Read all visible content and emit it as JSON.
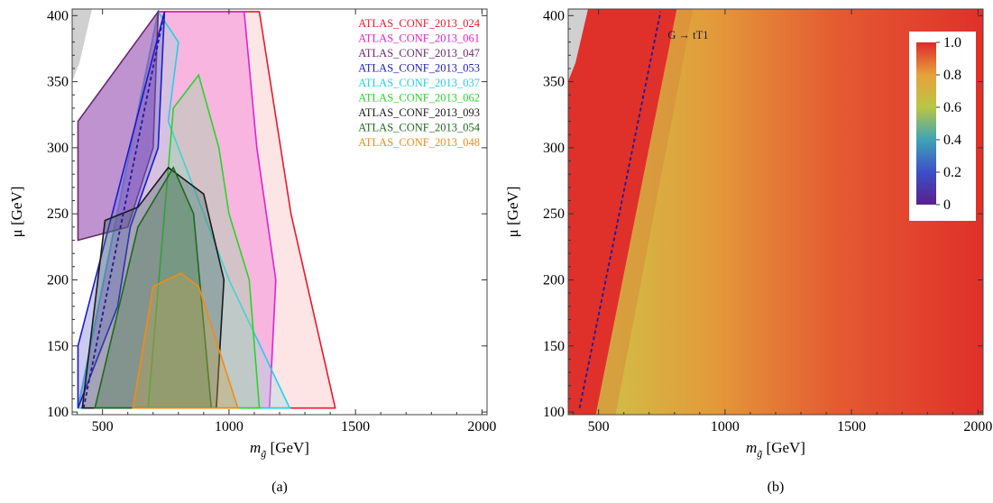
{
  "panels": [
    {
      "type": "area",
      "caption": "(a)",
      "xlabel_base": "m",
      "xlabel_sub": "g̃",
      "xlabel_unit": " [GeV]",
      "ylabel": "μ [GeV]",
      "xlim": [
        380,
        2020
      ],
      "ylim": [
        98,
        405
      ],
      "xticks": [
        "500",
        "1000",
        "1500",
        "2000"
      ],
      "yticks": [
        "100",
        "150",
        "200",
        "250",
        "300",
        "350",
        "400"
      ],
      "legend": [
        {
          "name": "ATLAS_CONF_2013_024",
          "color": "#e8192c"
        },
        {
          "name": "ATLAS_CONF_2013_061",
          "color": "#e61fd1"
        },
        {
          "name": "ATLAS_CONF_2013_047",
          "color": "#6a2a6e"
        },
        {
          "name": "ATLAS_CONF_2013_053",
          "color": "#1c1cc8"
        },
        {
          "name": "ATLAS_CONF_2013_037",
          "color": "#22d0e6"
        },
        {
          "name": "ATLAS_CONF_2013_062",
          "color": "#2ad42a"
        },
        {
          "name": "ATLAS_CONF_2013_093",
          "color": "#1a1a1a"
        },
        {
          "name": "ATLAS_CONF_2013_054",
          "color": "#1e6a1e"
        },
        {
          "name": "ATLAS_CONF_2013_048",
          "color": "#f08c14"
        }
      ]
    },
    {
      "type": "heatmap",
      "caption": "(b)",
      "xlabel_base": "m",
      "xlabel_sub": "g̃",
      "xlabel_unit": " [GeV]",
      "ylabel": "μ [GeV]",
      "xlim": [
        380,
        2020
      ],
      "ylim": [
        98,
        405
      ],
      "xticks": [
        "500",
        "1000",
        "1500",
        "2000"
      ],
      "yticks": [
        "100",
        "150",
        "200",
        "250",
        "300",
        "350",
        "400"
      ],
      "annotation": "G → tT1",
      "colorbar_ticks": [
        "1.0",
        "0.8",
        "0.6",
        "0.4",
        "0.2",
        "0"
      ]
    }
  ],
  "chart_data": [
    {
      "type": "area",
      "title": "",
      "x_unit": "GeV",
      "y_unit": "GeV",
      "xlim": [
        380,
        2020
      ],
      "ylim": [
        98,
        405
      ],
      "series": [
        {
          "name": "ATLAS_CONF_2013_024",
          "color": "#e8192c",
          "x": [
            403,
            720,
            1120,
            1245,
            1420,
            403
          ],
          "y": [
            103,
            403,
            403,
            250,
            103,
            103
          ]
        },
        {
          "name": "ATLAS_CONF_2013_061",
          "color": "#e61fd1",
          "x": [
            403,
            720,
            1060,
            1110,
            1185,
            1160,
            403
          ],
          "y": [
            103,
            403,
            403,
            300,
            200,
            103,
            103
          ]
        },
        {
          "name": "ATLAS_CONF_2013_037",
          "color": "#22d0e6",
          "x": [
            403,
            720,
            800,
            760,
            900,
            1000,
            1240,
            1165,
            403
          ],
          "y": [
            103,
            403,
            380,
            320,
            250,
            200,
            103,
            103,
            103
          ]
        },
        {
          "name": "ATLAS_CONF_2013_047",
          "color": "#6a2a6e",
          "x": [
            403,
            720,
            700,
            600,
            403
          ],
          "y": [
            320,
            403,
            300,
            240,
            230
          ]
        },
        {
          "name": "ATLAS_CONF_2013_053",
          "color": "#1c1cc8",
          "x": [
            403,
            745,
            720,
            610,
            560,
            403
          ],
          "y": [
            150,
            403,
            300,
            240,
            180,
            103
          ]
        },
        {
          "name": "ATLAS_CONF_2013_062",
          "color": "#2ad42a",
          "x": [
            680,
            780,
            880,
            960,
            1000,
            1080,
            1120,
            850,
            680
          ],
          "y": [
            103,
            330,
            355,
            300,
            250,
            200,
            103,
            103,
            103
          ]
        },
        {
          "name": "ATLAS_CONF_2013_093",
          "color": "#1a1a1a",
          "x": [
            420,
            510,
            640,
            760,
            900,
            980,
            950,
            420
          ],
          "y": [
            103,
            245,
            255,
            285,
            265,
            200,
            103,
            103
          ]
        },
        {
          "name": "ATLAS_CONF_2013_054",
          "color": "#1e6a1e",
          "x": [
            470,
            640,
            780,
            860,
            930,
            470
          ],
          "y": [
            103,
            240,
            285,
            250,
            103,
            103
          ]
        },
        {
          "name": "ATLAS_CONF_2013_048",
          "color": "#f08c14",
          "x": [
            620,
            700,
            810,
            880,
            1035,
            620
          ],
          "y": [
            103,
            195,
            205,
            195,
            103,
            103
          ]
        }
      ],
      "lines": [
        {
          "label": "G → tT1",
          "style": "dashed",
          "color": "#1c1c9a",
          "x": [
            425,
            745
          ],
          "y": [
            103,
            403
          ]
        }
      ]
    },
    {
      "type": "heatmap",
      "title": "",
      "x_unit": "GeV",
      "y_unit": "GeV",
      "xlim": [
        380,
        2020
      ],
      "ylim": [
        98,
        405
      ],
      "value_range": [
        0,
        1
      ],
      "colorbar": [
        0,
        0.2,
        0.4,
        0.6,
        0.8,
        1.0
      ],
      "regions": [
        {
          "description_value": 1.0,
          "where": "left of G → tT1 line"
        },
        {
          "description_value": 0.6,
          "where": "just right of G → tT1 line"
        },
        {
          "description_value": 0.8,
          "where": "mid mass"
        },
        {
          "description_value": 1.0,
          "where": "high mass"
        }
      ],
      "lines": [
        {
          "label": "G → tT1",
          "style": "dashed",
          "color": "#1c1c9a",
          "x": [
            425,
            745
          ],
          "y": [
            103,
            403
          ]
        }
      ]
    }
  ]
}
